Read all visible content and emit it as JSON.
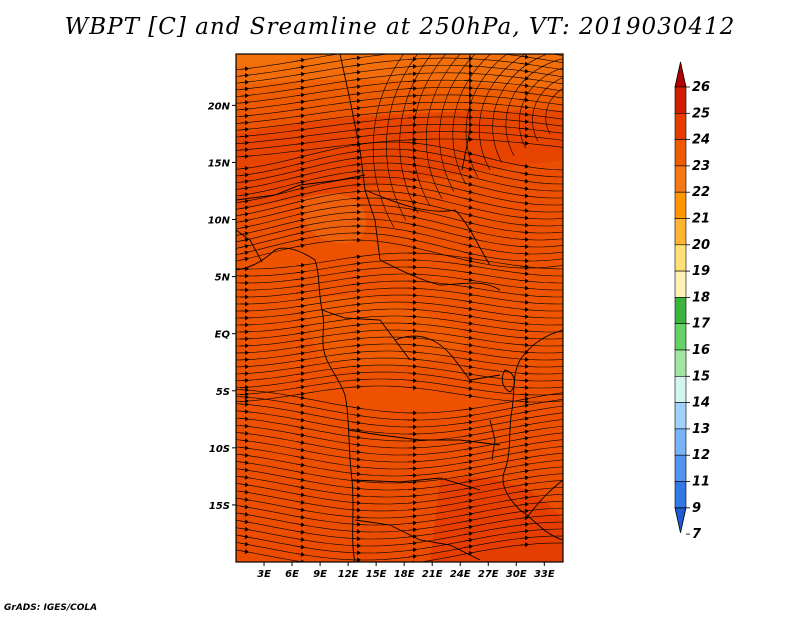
{
  "title": "WBPT [C] and Sreamline at 250hPa, VT: 2019030412",
  "credit": "GrADS: IGES/COLA",
  "map": {
    "lon_range": [
      0,
      35
    ],
    "lat_range": [
      -20,
      24.5
    ],
    "lon_ticks": [
      {
        "value": 3,
        "label": "3E"
      },
      {
        "value": 6,
        "label": "6E"
      },
      {
        "value": 9,
        "label": "9E"
      },
      {
        "value": 12,
        "label": "12E"
      },
      {
        "value": 15,
        "label": "15E"
      },
      {
        "value": 18,
        "label": "18E"
      },
      {
        "value": 21,
        "label": "21E"
      },
      {
        "value": 24,
        "label": "24E"
      },
      {
        "value": 27,
        "label": "27E"
      },
      {
        "value": 30,
        "label": "30E"
      },
      {
        "value": 33,
        "label": "33E"
      }
    ],
    "lat_ticks": [
      {
        "value": 20,
        "label": "20N"
      },
      {
        "value": 15,
        "label": "15N"
      },
      {
        "value": 10,
        "label": "10N"
      },
      {
        "value": 5,
        "label": "5N"
      },
      {
        "value": 0,
        "label": "EQ"
      },
      {
        "value": -5,
        "label": "5S"
      },
      {
        "value": -10,
        "label": "10S"
      },
      {
        "value": -15,
        "label": "15S"
      }
    ]
  },
  "colorbar": {
    "labels": [
      "26",
      "25",
      "24",
      "23",
      "22",
      "21",
      "20",
      "19",
      "18",
      "17",
      "16",
      "15",
      "14",
      "13",
      "12",
      "11",
      "9",
      "7"
    ],
    "colors": [
      "#b40000",
      "#d21e00",
      "#e63c00",
      "#f05a00",
      "#f57814",
      "#ff9600",
      "#ffb432",
      "#ffe178",
      "#fff0b4",
      "#3cb43c",
      "#64d264",
      "#a0e6a0",
      "#d2f5f0",
      "#a0d2ff",
      "#78b4fa",
      "#5096f0",
      "#3278e6",
      "#1e5ad2"
    ]
  }
}
